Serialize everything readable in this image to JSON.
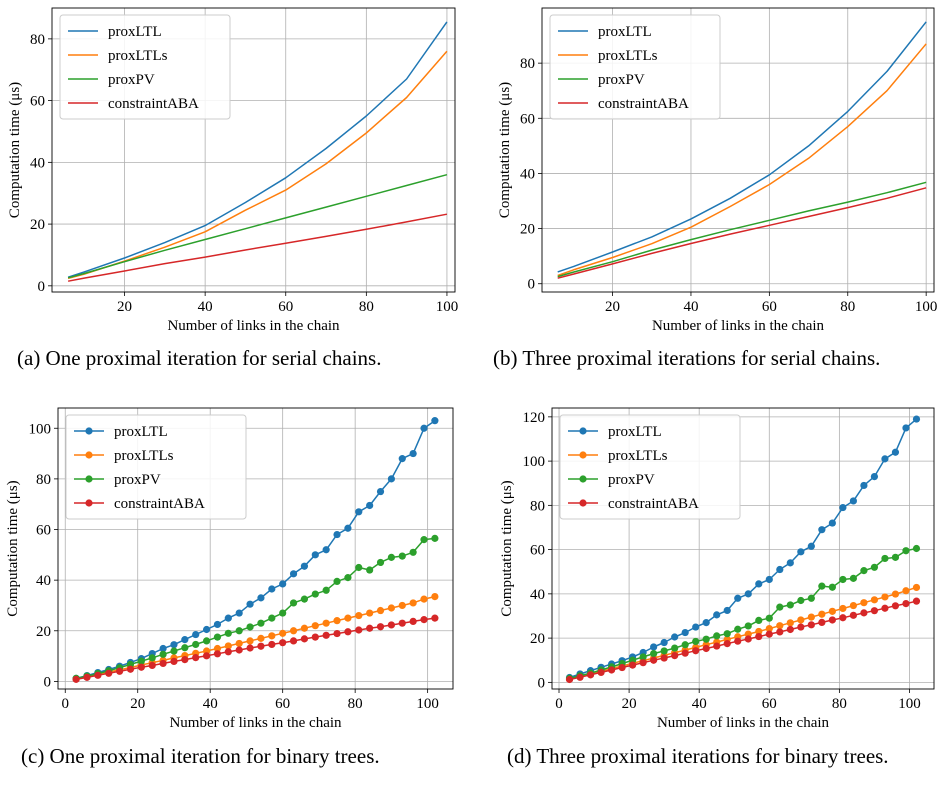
{
  "colors": {
    "proxLTL": "#1f77b4",
    "proxLTLs": "#ff7f0e",
    "proxPV": "#2ca02c",
    "constraintABA": "#d62728",
    "grid": "#b0b0b0"
  },
  "captions": {
    "a": "(a) One proximal iteration for serial chains.",
    "b": "(b) Three proximal iterations for serial chains.",
    "c": "(c) One proximal iteration for binary trees.",
    "d": "(d) Three proximal iterations for binary trees."
  },
  "chart_data": [
    {
      "type": "line",
      "id": "a",
      "markers": false,
      "xlabel": "Number of links in the chain",
      "ylabel": "Computation time (μs)",
      "xlim": [
        2,
        102
      ],
      "ylim": [
        -2,
        90
      ],
      "xticks": [
        20,
        40,
        60,
        80,
        100
      ],
      "yticks": [
        0,
        20,
        40,
        60,
        80
      ],
      "grid": true,
      "legend": "top-left",
      "x": [
        6,
        10,
        20,
        30,
        40,
        50,
        60,
        70,
        80,
        90,
        100
      ],
      "series": [
        {
          "name": "proxLTL",
          "values": [
            2.8,
            4.5,
            9.0,
            14.0,
            19.5,
            27.0,
            35.0,
            44.5,
            55.0,
            67.0,
            85.5
          ]
        },
        {
          "name": "proxLTLs",
          "values": [
            2.4,
            3.8,
            8.0,
            12.5,
            17.5,
            24.5,
            31.0,
            39.5,
            49.5,
            61.0,
            76.0
          ]
        },
        {
          "name": "proxPV",
          "values": [
            2.6,
            4.0,
            7.8,
            11.5,
            15.0,
            18.5,
            22.0,
            25.5,
            29.0,
            32.5,
            36.0
          ]
        },
        {
          "name": "constraintABA",
          "values": [
            1.5,
            2.5,
            4.8,
            7.2,
            9.3,
            11.6,
            13.8,
            16.0,
            18.3,
            20.7,
            23.2
          ]
        }
      ]
    },
    {
      "type": "line",
      "id": "b",
      "markers": false,
      "xlabel": "Number of links in the chain",
      "ylabel": "Computation time (μs)",
      "xlim": [
        2,
        102
      ],
      "ylim": [
        -3,
        100
      ],
      "xticks": [
        20,
        40,
        60,
        80,
        100
      ],
      "yticks": [
        0,
        20,
        40,
        60,
        80
      ],
      "grid": true,
      "legend": "top-left",
      "x": [
        6,
        10,
        20,
        30,
        40,
        50,
        60,
        70,
        80,
        90,
        100
      ],
      "series": [
        {
          "name": "proxLTL",
          "values": [
            4.3,
            6.2,
            11.5,
            17.0,
            23.5,
            31.0,
            39.5,
            50.0,
            62.5,
            77.0,
            95.0
          ]
        },
        {
          "name": "proxLTLs",
          "values": [
            3.0,
            5.0,
            9.5,
            14.5,
            20.5,
            28.0,
            36.0,
            45.5,
            57.0,
            70.0,
            87.0
          ]
        },
        {
          "name": "proxPV",
          "values": [
            2.6,
            4.2,
            8.0,
            12.2,
            16.0,
            19.6,
            23.0,
            26.4,
            29.6,
            33.0,
            36.8
          ]
        },
        {
          "name": "constraintABA",
          "values": [
            2.0,
            3.5,
            7.2,
            11.0,
            14.6,
            18.0,
            21.2,
            24.4,
            27.6,
            31.0,
            34.8
          ]
        }
      ]
    },
    {
      "type": "line",
      "id": "c",
      "markers": true,
      "xlabel": "Number of links in the chain",
      "ylabel": "Computation time (μs)",
      "xlim": [
        -2,
        107
      ],
      "ylim": [
        -3,
        108
      ],
      "xticks": [
        0,
        20,
        40,
        60,
        80,
        100
      ],
      "yticks": [
        0,
        20,
        40,
        60,
        80,
        100
      ],
      "grid": true,
      "legend": "top-left",
      "x": [
        3,
        6,
        9,
        12,
        15,
        18,
        21,
        24,
        27,
        30,
        33,
        36,
        39,
        42,
        45,
        48,
        51,
        54,
        57,
        60,
        63,
        66,
        69,
        72,
        75,
        78,
        81,
        84,
        87,
        90,
        93,
        96,
        99,
        102
      ],
      "series": [
        {
          "name": "proxLTL",
          "values": [
            1.2,
            2.3,
            3.5,
            4.7,
            6.0,
            7.5,
            9.0,
            11.0,
            13.0,
            14.5,
            16.5,
            18.5,
            20.5,
            22.5,
            25.0,
            27.0,
            30.5,
            33.0,
            36.5,
            38.5,
            42.5,
            45.5,
            50.0,
            52.0,
            58.0,
            60.5,
            67.0,
            69.5,
            75.0,
            80.0,
            88.0,
            90.0,
            100.0,
            103.0
          ]
        },
        {
          "name": "proxLTLs",
          "values": [
            1.0,
            1.9,
            2.8,
            3.7,
            4.6,
            5.5,
            6.5,
            7.4,
            8.3,
            9.3,
            10.2,
            11.1,
            12.0,
            13.0,
            14.0,
            15.0,
            16.0,
            17.0,
            18.0,
            19.0,
            20.0,
            21.0,
            22.0,
            23.0,
            24.0,
            25.0,
            26.0,
            27.0,
            28.0,
            29.0,
            30.0,
            31.0,
            32.5,
            33.5
          ]
        },
        {
          "name": "proxPV",
          "values": [
            1.2,
            2.1,
            3.1,
            4.2,
            5.4,
            6.7,
            8.0,
            9.3,
            10.7,
            12.0,
            13.3,
            14.6,
            16.0,
            17.5,
            19.0,
            20.0,
            21.5,
            23.0,
            25.0,
            27.0,
            31.0,
            32.5,
            34.5,
            36.0,
            39.5,
            41.0,
            45.0,
            44.0,
            47.0,
            49.0,
            49.5,
            51.0,
            56.0,
            56.5
          ]
        },
        {
          "name": "constraintABA",
          "values": [
            0.8,
            1.6,
            2.4,
            3.2,
            4.0,
            4.8,
            5.6,
            6.3,
            7.1,
            7.9,
            8.6,
            9.4,
            10.1,
            10.9,
            11.7,
            12.4,
            13.2,
            13.9,
            14.6,
            15.3,
            16.0,
            16.8,
            17.5,
            18.2,
            18.9,
            19.6,
            20.3,
            21.0,
            21.6,
            22.3,
            23.0,
            23.7,
            24.4,
            25.0
          ]
        }
      ]
    },
    {
      "type": "line",
      "id": "d",
      "markers": true,
      "xlabel": "Number of links in the chain",
      "ylabel": "Computation time (μs)",
      "xlim": [
        -2,
        107
      ],
      "ylim": [
        -3,
        124
      ],
      "xticks": [
        0,
        20,
        40,
        60,
        80,
        100
      ],
      "yticks": [
        0,
        20,
        40,
        60,
        80,
        100,
        120
      ],
      "grid": true,
      "legend": "top-left",
      "x": [
        3,
        6,
        9,
        12,
        15,
        18,
        21,
        24,
        27,
        30,
        33,
        36,
        39,
        42,
        45,
        48,
        51,
        54,
        57,
        60,
        63,
        66,
        69,
        72,
        75,
        78,
        81,
        84,
        87,
        90,
        93,
        96,
        99,
        102
      ],
      "series": [
        {
          "name": "proxLTL",
          "values": [
            2.2,
            3.8,
            5.3,
            6.8,
            8.3,
            9.8,
            11.5,
            13.5,
            16.0,
            18.0,
            20.5,
            22.5,
            25.0,
            27.0,
            30.5,
            32.5,
            38.0,
            40.0,
            44.5,
            46.5,
            51.0,
            54.0,
            59.0,
            61.5,
            69.0,
            72.0,
            79.0,
            82.0,
            89.0,
            93.0,
            101.0,
            104.0,
            115.0,
            119.0
          ]
        },
        {
          "name": "proxLTLs",
          "values": [
            1.4,
            2.6,
            3.8,
            5.0,
            6.2,
            7.4,
            8.6,
            9.8,
            11.0,
            12.2,
            13.4,
            14.6,
            15.8,
            17.0,
            18.2,
            19.4,
            20.6,
            21.8,
            23.0,
            24.3,
            25.6,
            26.9,
            28.2,
            29.5,
            30.8,
            32.1,
            33.4,
            34.7,
            36.0,
            37.3,
            38.6,
            39.9,
            41.4,
            42.9
          ]
        },
        {
          "name": "proxPV",
          "values": [
            1.8,
            3.0,
            4.2,
            5.6,
            7.0,
            8.5,
            10.0,
            11.5,
            13.0,
            14.2,
            15.5,
            17.0,
            18.5,
            19.5,
            21.0,
            22.0,
            24.0,
            25.5,
            28.0,
            29.0,
            34.0,
            35.0,
            37.0,
            38.0,
            43.5,
            43.0,
            46.5,
            47.0,
            50.5,
            52.0,
            56.0,
            56.5,
            59.5,
            60.5
          ]
        },
        {
          "name": "constraintABA",
          "values": [
            1.3,
            2.3,
            3.4,
            4.5,
            5.6,
            6.7,
            7.8,
            8.9,
            10.0,
            11.0,
            12.1,
            13.2,
            14.3,
            15.3,
            16.4,
            17.5,
            18.6,
            19.6,
            20.7,
            21.8,
            22.8,
            23.9,
            25.0,
            26.0,
            27.1,
            28.2,
            29.2,
            30.3,
            31.4,
            32.4,
            33.5,
            34.6,
            35.6,
            36.7
          ]
        }
      ]
    }
  ]
}
